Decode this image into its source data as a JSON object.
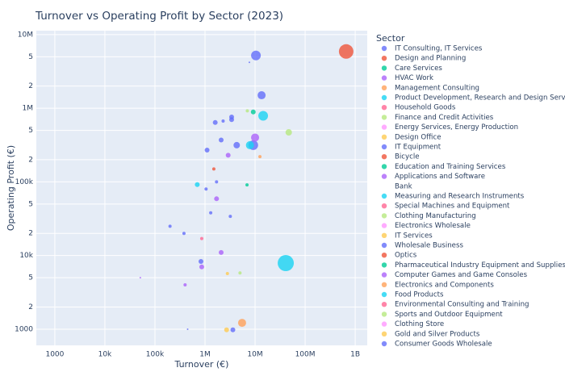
{
  "chart_data": {
    "type": "scatter",
    "title": "Turnover vs Operating Profit by Sector (2023)",
    "x_label": "Turnover (€)",
    "y_label": "Operating Profit (€)",
    "legend_title": "Sector",
    "log_x": true,
    "log_y": true,
    "grid": true,
    "xlim": [
      427,
      1740000000
    ],
    "ylim": [
      603,
      11300000
    ],
    "xticks": [
      {
        "value": 1000,
        "label": "1000"
      },
      {
        "value": 10000,
        "label": "10k"
      },
      {
        "value": 100000,
        "label": "100k"
      },
      {
        "value": 1000000,
        "label": "1M"
      },
      {
        "value": 10000000,
        "label": "10M"
      },
      {
        "value": 100000000,
        "label": "100M"
      },
      {
        "value": 1000000000,
        "label": "1B"
      }
    ],
    "yticks": [
      1000,
      {
        "value": 2000,
        "label": "2"
      },
      {
        "value": 5000,
        "label": "5"
      },
      {
        "value": 10000,
        "label": "10k"
      },
      {
        "value": 20000,
        "label": "2"
      },
      {
        "value": 50000,
        "label": "5"
      },
      {
        "value": 100000,
        "label": "100k"
      },
      {
        "value": 200000,
        "label": "2"
      },
      {
        "value": 500000,
        "label": "5"
      },
      {
        "value": 1000000,
        "label": "1M"
      },
      {
        "value": 2000000,
        "label": "2"
      },
      {
        "value": 5000000,
        "label": "5"
      },
      {
        "value": 10000000,
        "label": "10M"
      }
    ],
    "series": [
      {
        "name": "IT Consulting, IT Services",
        "color": "#636efa",
        "x": [
          10400000,
          13500000,
          9200000
        ],
        "y": [
          5200000,
          1500000,
          315000
        ],
        "sizes": [
          6,
          5,
          6
        ]
      },
      {
        "name": "Design and Planning",
        "color": "#EF553B",
        "x": [
          660000000
        ],
        "y": [
          5900000
        ],
        "sizes": [
          9
        ]
      },
      {
        "name": "Care Services",
        "color": "#00cc96",
        "x": [
          9200000
        ],
        "y": [
          890000
        ],
        "sizes": [
          3
        ]
      },
      {
        "name": "HVAC Work",
        "color": "#ab63fa",
        "x": [
          10000000,
          2900000
        ],
        "y": [
          400000,
          230000
        ],
        "sizes": [
          5,
          3
        ]
      },
      {
        "name": "Management Consulting",
        "color": "#FFA15A",
        "x": [
          12500000
        ],
        "y": [
          220000
        ],
        "sizes": [
          2
        ]
      },
      {
        "name": "Product Development, Research and Design Services",
        "color": "#19d3f3",
        "x": [
          41000000,
          14500000
        ],
        "y": [
          7900,
          790000
        ],
        "sizes": [
          10,
          6
        ]
      },
      {
        "name": "Household Goods",
        "color": "#FF6692",
        "x": [
          860000
        ],
        "y": [
          17000
        ],
        "sizes": [
          2
        ]
      },
      {
        "name": "Finance and Credit Activities",
        "color": "#B6E880",
        "x": [
          7000000
        ],
        "y": [
          920000
        ],
        "sizes": [
          2
        ]
      },
      {
        "name": "Energy Services, Energy Production",
        "color": "#FF97FF",
        "x": [],
        "y": [],
        "sizes": []
      },
      {
        "name": "Design Office",
        "color": "#FECB52",
        "x": [],
        "y": [],
        "sizes": []
      },
      {
        "name": "IT Equipment",
        "color": "#636efa",
        "x": [
          1100000,
          2100000
        ],
        "y": [
          270000,
          370000
        ],
        "sizes": [
          3,
          3
        ]
      },
      {
        "name": "Bicycle",
        "color": "#EF553B",
        "x": [
          1500000
        ],
        "y": [
          150000
        ],
        "sizes": [
          2
        ]
      },
      {
        "name": "Education and Training Services",
        "color": "#00cc96",
        "x": [
          6900000
        ],
        "y": [
          91000
        ],
        "sizes": [
          2
        ]
      },
      {
        "name": "Applications and Software",
        "color": "#ab63fa",
        "x": [
          1700000,
          2100000
        ],
        "y": [
          59000,
          11000
        ],
        "sizes": [
          3,
          3
        ]
      },
      {
        "name": "Bank",
        "color": "#ffffff",
        "x": [],
        "y": [],
        "sizes": []
      },
      {
        "name": "Measuring and Research Instruments",
        "color": "#19d3f3",
        "x": [
          7900000
        ],
        "y": [
          315000
        ],
        "sizes": [
          5
        ]
      },
      {
        "name": "Special Machines and Equipment",
        "color": "#FF6692",
        "x": [],
        "y": [],
        "sizes": []
      },
      {
        "name": "Clothing Manufacturing",
        "color": "#B6E880",
        "x": [
          47000000,
          5000000
        ],
        "y": [
          470000,
          5800
        ],
        "sizes": [
          4,
          2
        ]
      },
      {
        "name": "Electronics Wholesale",
        "color": "#FF97FF",
        "x": [],
        "y": [],
        "sizes": []
      },
      {
        "name": "IT Services",
        "color": "#FECB52",
        "x": [
          2800000
        ],
        "y": [
          5700
        ],
        "sizes": [
          2
        ]
      },
      {
        "name": "Wholesale Business",
        "color": "#636efa",
        "x": [
          1600000,
          3400000,
          3400000,
          2300000
        ],
        "y": [
          640000,
          760000,
          700000,
          670000
        ],
        "sizes": [
          3,
          3,
          3,
          2
        ]
      },
      {
        "name": "Optics",
        "color": "#EF553B",
        "x": [],
        "y": [],
        "sizes": []
      },
      {
        "name": "Pharmaceutical Industry Equipment and Supplies",
        "color": "#00cc96",
        "x": [],
        "y": [],
        "sizes": []
      },
      {
        "name": "Computer Games and Game Consoles",
        "color": "#ab63fa",
        "x": [
          860000,
          400000,
          51000
        ],
        "y": [
          7000,
          4000,
          5000
        ],
        "sizes": [
          3,
          2,
          1
        ]
      },
      {
        "name": "Electronics and Components",
        "color": "#FFA15A",
        "x": [
          5500000
        ],
        "y": [
          1220
        ],
        "sizes": [
          5
        ]
      },
      {
        "name": "Food Products",
        "color": "#19d3f3",
        "x": [
          700000
        ],
        "y": [
          92000
        ],
        "sizes": [
          3
        ]
      },
      {
        "name": "Environmental Consulting and Training",
        "color": "#FF6692",
        "x": [],
        "y": [],
        "sizes": []
      },
      {
        "name": "Sports and Outdoor Equipment",
        "color": "#B6E880",
        "x": [],
        "y": [],
        "sizes": []
      },
      {
        "name": "Clothing Store",
        "color": "#FF97FF",
        "x": [],
        "y": [],
        "sizes": []
      },
      {
        "name": "Gold and Silver Products",
        "color": "#FECB52",
        "x": [
          2700000
        ],
        "y": [
          980
        ],
        "sizes": [
          3
        ]
      },
      {
        "name": "Consumer Goods Wholesale",
        "color": "#636efa",
        "x": [
          4300000,
          1700000,
          1050000,
          830000,
          3600000,
          200000,
          3200000,
          7700000,
          380000,
          1300000,
          450000
        ],
        "y": [
          315000,
          100000,
          80000,
          8300,
          980,
          25000,
          34000,
          4200000,
          20000,
          38000,
          1000
        ],
        "sizes": [
          4,
          2,
          2,
          3,
          3,
          2,
          2,
          1,
          2,
          2,
          1
        ]
      }
    ]
  }
}
